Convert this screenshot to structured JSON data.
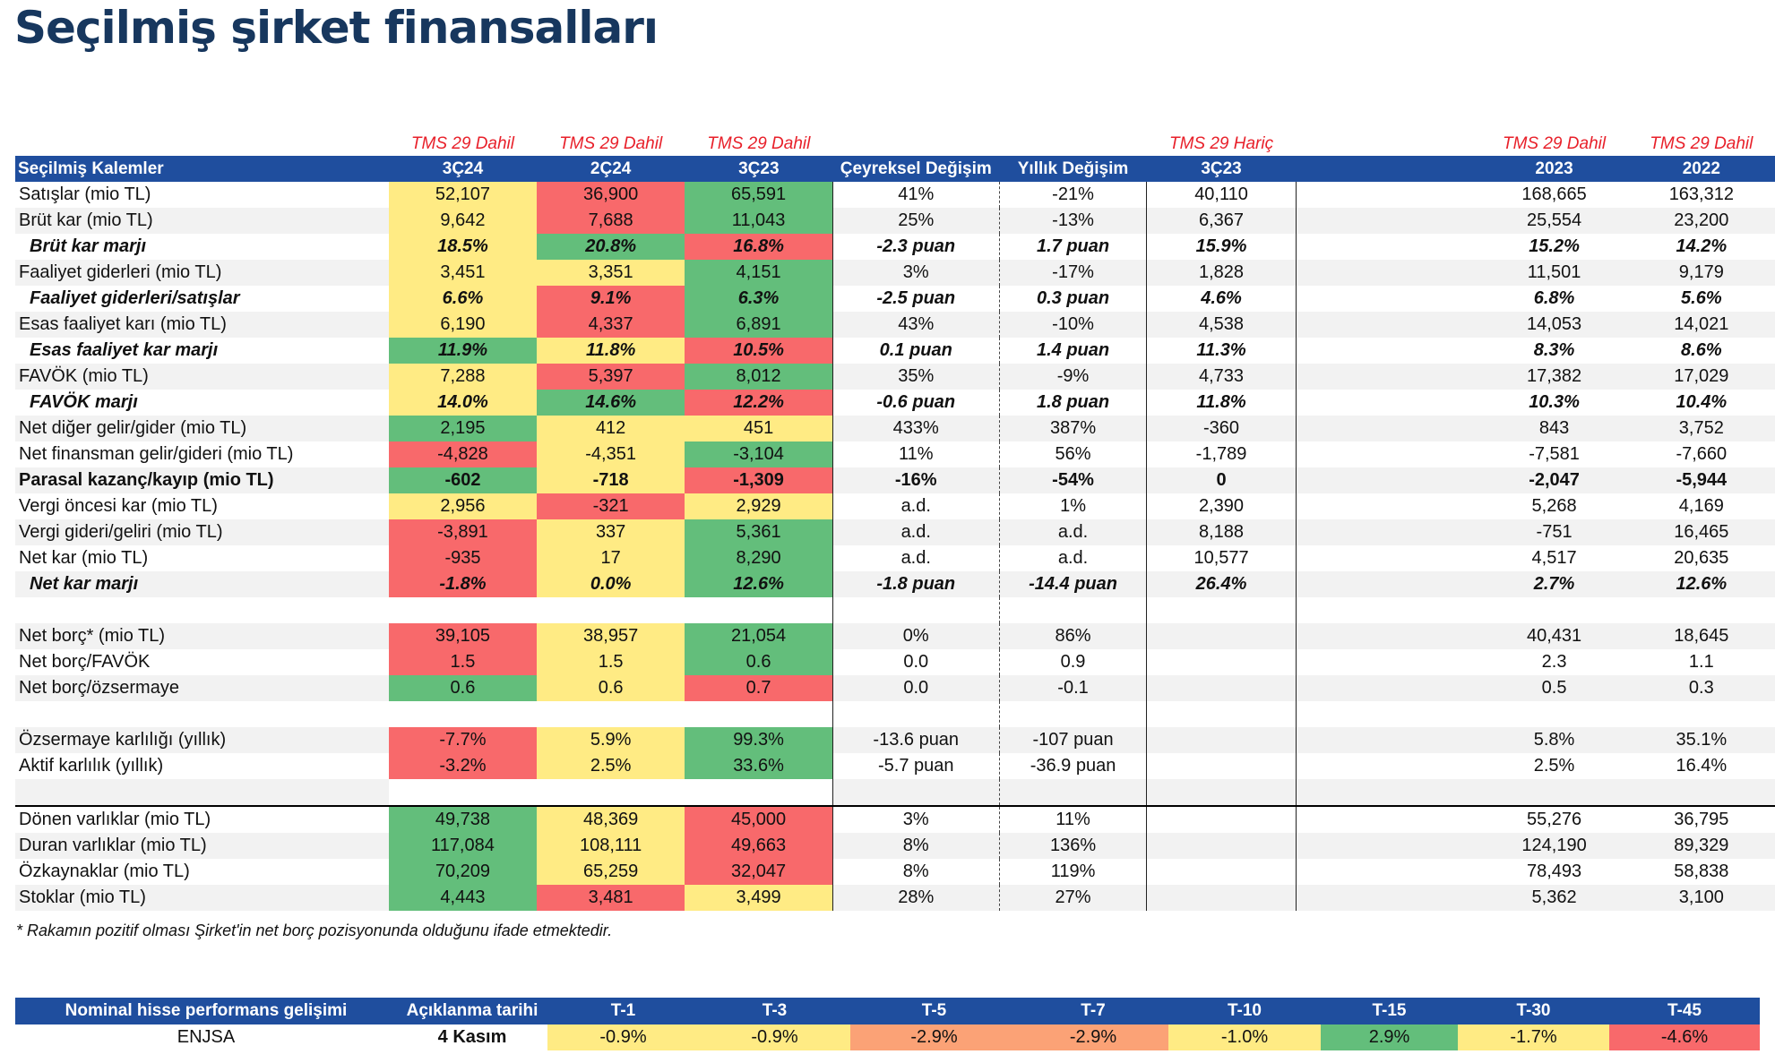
{
  "page": {
    "title": "Seçilmiş şirket finansalları"
  },
  "colors": {
    "header_bg": "#1f4e9e",
    "title": "#17375e",
    "tms": "#e8202a",
    "green": "#63be7b",
    "yellow": "#ffeb84",
    "red": "#f8696b",
    "orange": "#fba276",
    "highlight_row": "#f8cbad"
  },
  "table": {
    "tms": [
      "TMS 29 Dahil",
      "TMS 29 Dahil",
      "TMS 29 Dahil",
      "TMS 29 Hariç",
      "TMS 29 Dahil",
      "TMS 29 Dahil"
    ],
    "headers": [
      "Seçilmiş Kalemler",
      "3Ç24",
      "2Ç24",
      "3Ç23",
      "Çeyreksel Değişim",
      "Yıllık Değişim",
      "3Ç23",
      "",
      "2023",
      "2022"
    ],
    "rows": [
      {
        "label": "Satışlar (mio TL)",
        "q1": "52,107",
        "q2": "36,900",
        "q3": "65,591",
        "qoq": "41%",
        "yoy": "-21%",
        "exq": "40,110",
        "y23": "168,665",
        "y22": "163,312"
      },
      {
        "label": "Brüt kar (mio TL)",
        "q1": "9,642",
        "q2": "7,688",
        "q3": "11,043",
        "qoq": "25%",
        "yoy": "-13%",
        "exq": "6,367",
        "y23": "25,554",
        "y22": "23,200"
      },
      {
        "label": "Brüt kar marjı",
        "q1": "18.5%",
        "q2": "20.8%",
        "q3": "16.8%",
        "qoq": "-2.3 puan",
        "yoy": "1.7 puan",
        "exq": "15.9%",
        "y23": "15.2%",
        "y22": "14.2%"
      },
      {
        "label": "Faaliyet giderleri (mio TL)",
        "q1": "3,451",
        "q2": "3,351",
        "q3": "4,151",
        "qoq": "3%",
        "yoy": "-17%",
        "exq": "1,828",
        "y23": "11,501",
        "y22": "9,179"
      },
      {
        "label": "Faaliyet giderleri/satışlar",
        "q1": "6.6%",
        "q2": "9.1%",
        "q3": "6.3%",
        "qoq": "-2.5 puan",
        "yoy": "0.3 puan",
        "exq": "4.6%",
        "y23": "6.8%",
        "y22": "5.6%"
      },
      {
        "label": "Esas faaliyet karı (mio TL)",
        "q1": "6,190",
        "q2": "4,337",
        "q3": "6,891",
        "qoq": "43%",
        "yoy": "-10%",
        "exq": "4,538",
        "y23": "14,053",
        "y22": "14,021"
      },
      {
        "label": "Esas faaliyet kar marjı",
        "q1": "11.9%",
        "q2": "11.8%",
        "q3": "10.5%",
        "qoq": "0.1 puan",
        "yoy": "1.4 puan",
        "exq": "11.3%",
        "y23": "8.3%",
        "y22": "8.6%"
      },
      {
        "label": "FAVÖK (mio TL)",
        "q1": "7,288",
        "q2": "5,397",
        "q3": "8,012",
        "qoq": "35%",
        "yoy": "-9%",
        "exq": "4,733",
        "y23": "17,382",
        "y22": "17,029"
      },
      {
        "label": "FAVÖK marjı",
        "q1": "14.0%",
        "q2": "14.6%",
        "q3": "12.2%",
        "qoq": "-0.6 puan",
        "yoy": "1.8 puan",
        "exq": "11.8%",
        "y23": "10.3%",
        "y22": "10.4%"
      },
      {
        "label": "Net diğer gelir/gider (mio TL)",
        "q1": "2,195",
        "q2": "412",
        "q3": "451",
        "qoq": "433%",
        "yoy": "387%",
        "exq": "-360",
        "y23": "843",
        "y22": "3,752"
      },
      {
        "label": "Net finansman gelir/gideri (mio TL)",
        "q1": "-4,828",
        "q2": "-4,351",
        "q3": "-3,104",
        "qoq": "11%",
        "yoy": "56%",
        "exq": "-1,789",
        "y23": "-7,581",
        "y22": "-7,660"
      },
      {
        "label": "Parasal kazanç/kayıp (mio TL)",
        "q1": "-602",
        "q2": "-718",
        "q3": "-1,309",
        "qoq": "-16%",
        "yoy": "-54%",
        "exq": "0",
        "y23": "-2,047",
        "y22": "-5,944"
      },
      {
        "label": "Vergi öncesi kar (mio TL)",
        "q1": "2,956",
        "q2": "-321",
        "q3": "2,929",
        "qoq": "a.d.",
        "yoy": "1%",
        "exq": "2,390",
        "y23": "5,268",
        "y22": "4,169"
      },
      {
        "label": "Vergi gideri/geliri (mio TL)",
        "q1": "-3,891",
        "q2": "337",
        "q3": "5,361",
        "qoq": "a.d.",
        "yoy": "a.d.",
        "exq": "8,188",
        "y23": "-751",
        "y22": "16,465"
      },
      {
        "label": "Net kar (mio TL)",
        "q1": "-935",
        "q2": "17",
        "q3": "8,290",
        "qoq": "a.d.",
        "yoy": "a.d.",
        "exq": "10,577",
        "y23": "4,517",
        "y22": "20,635"
      },
      {
        "label": "Net kar marjı",
        "q1": "-1.8%",
        "q2": "0.0%",
        "q3": "12.6%",
        "qoq": "-1.8 puan",
        "yoy": "-14.4 puan",
        "exq": "26.4%",
        "y23": "2.7%",
        "y22": "12.6%"
      },
      {
        "label": "",
        "q1": "",
        "q2": "",
        "q3": "",
        "qoq": "",
        "yoy": "",
        "exq": "",
        "y23": "",
        "y22": ""
      },
      {
        "label": "Net borç* (mio TL)",
        "q1": "39,105",
        "q2": "38,957",
        "q3": "21,054",
        "qoq": "0%",
        "yoy": "86%",
        "exq": "",
        "y23": "40,431",
        "y22": "18,645"
      },
      {
        "label": "Net borç/FAVÖK",
        "q1": "1.5",
        "q2": "1.5",
        "q3": "0.6",
        "qoq": "0.0",
        "yoy": "0.9",
        "exq": "",
        "y23": "2.3",
        "y22": "1.1"
      },
      {
        "label": "Net borç/özsermaye",
        "q1": "0.6",
        "q2": "0.6",
        "q3": "0.7",
        "qoq": "0.0",
        "yoy": "-0.1",
        "exq": "",
        "y23": "0.5",
        "y22": "0.3"
      },
      {
        "label": "",
        "q1": "",
        "q2": "",
        "q3": "",
        "qoq": "",
        "yoy": "",
        "exq": "",
        "y23": "",
        "y22": ""
      },
      {
        "label": "Özsermaye karlılığı (yıllık)",
        "q1": "-7.7%",
        "q2": "5.9%",
        "q3": "99.3%",
        "qoq": "-13.6 puan",
        "yoy": "-107 puan",
        "exq": "",
        "y23": "5.8%",
        "y22": "35.1%"
      },
      {
        "label": "Aktif karlılık (yıllık)",
        "q1": "-3.2%",
        "q2": "2.5%",
        "q3": "33.6%",
        "qoq": "-5.7 puan",
        "yoy": "-36.9 puan",
        "exq": "",
        "y23": "2.5%",
        "y22": "16.4%"
      },
      {
        "label": "",
        "q1": "",
        "q2": "",
        "q3": "",
        "qoq": "",
        "yoy": "",
        "exq": "",
        "y23": "",
        "y22": ""
      },
      {
        "label": "Dönen varlıklar (mio TL)",
        "q1": "49,738",
        "q2": "48,369",
        "q3": "45,000",
        "qoq": "3%",
        "yoy": "11%",
        "exq": "",
        "y23": "55,276",
        "y22": "36,795"
      },
      {
        "label": "Duran varlıklar (mio TL)",
        "q1": "117,084",
        "q2": "108,111",
        "q3": "49,663",
        "qoq": "8%",
        "yoy": "136%",
        "exq": "",
        "y23": "124,190",
        "y22": "89,329"
      },
      {
        "label": "Özkaynaklar (mio TL)",
        "q1": "70,209",
        "q2": "65,259",
        "q3": "32,047",
        "qoq": "8%",
        "yoy": "119%",
        "exq": "",
        "y23": "78,493",
        "y22": "58,838"
      },
      {
        "label": "Stoklar (mio TL)",
        "q1": "4,443",
        "q2": "3,481",
        "q3": "3,499",
        "qoq": "28%",
        "yoy": "27%",
        "exq": "",
        "y23": "5,362",
        "y22": "3,100"
      }
    ]
  },
  "footnote": "* Rakamın pozitif olması Şirket'in net borç pozisyonunda olduğunu ifade etmektedir.",
  "performance": {
    "headers": [
      "Nominal hisse performans gelişimi",
      "Açıklanma tarihi",
      "T-1",
      "T-3",
      "T-5",
      "T-7",
      "T-10",
      "T-15",
      "T-30",
      "T-45"
    ],
    "row": {
      "ticker": "ENJSA",
      "date": "4 Kasım",
      "values": [
        "-0.9%",
        "-0.9%",
        "-2.9%",
        "-2.9%",
        "-1.0%",
        "2.9%",
        "-1.7%",
        "-4.6%"
      ]
    }
  }
}
